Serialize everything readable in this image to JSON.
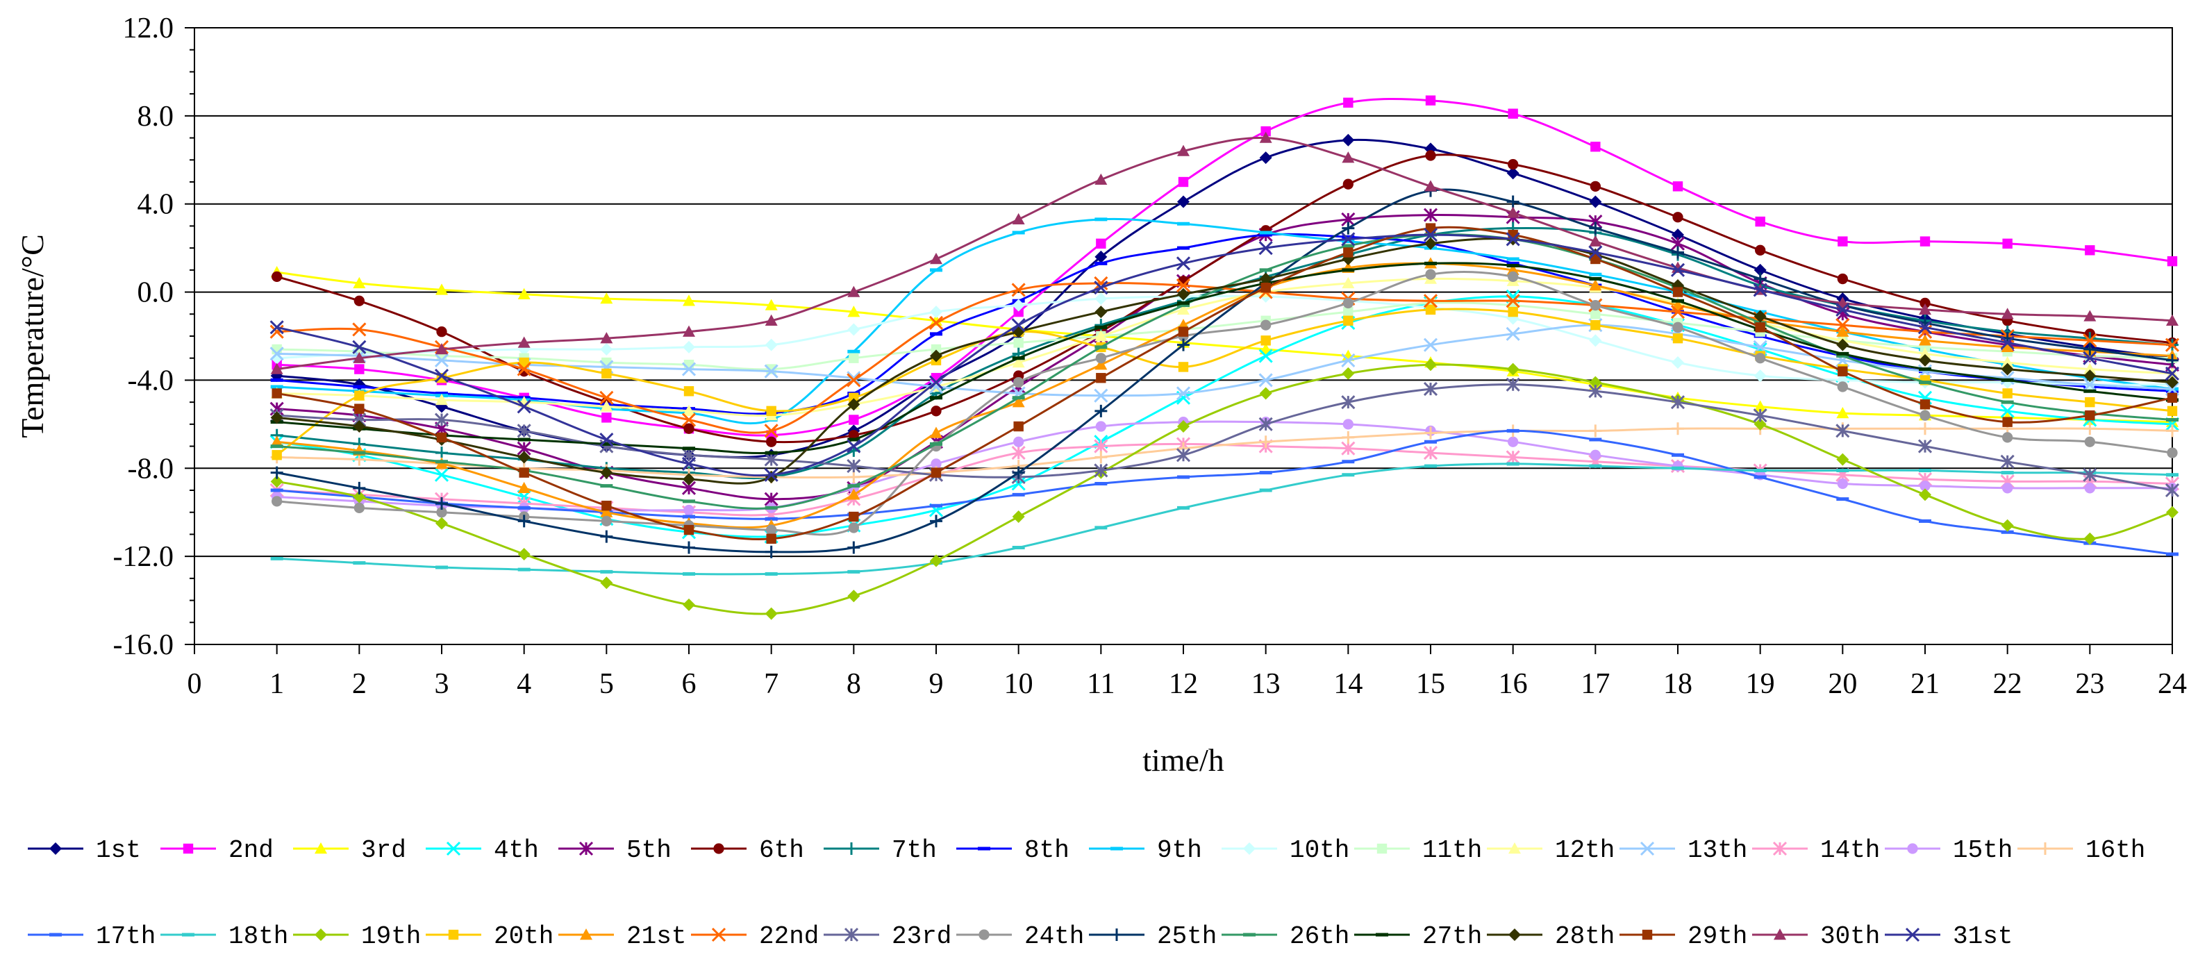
{
  "chart_data": {
    "type": "line",
    "title": "",
    "xlabel": "time/h",
    "ylabel": "Temperature/°C",
    "xlim": [
      0,
      24
    ],
    "ylim": [
      -16,
      12
    ],
    "x_ticks": [
      "0",
      "1",
      "2",
      "3",
      "4",
      "5",
      "6",
      "7",
      "8",
      "9",
      "10",
      "11",
      "12",
      "13",
      "14",
      "15",
      "16",
      "17",
      "18",
      "19",
      "20",
      "21",
      "22",
      "23",
      "24"
    ],
    "y_ticks": [
      "12.0",
      "8.0",
      "4.0",
      "0.0",
      "-4.0",
      "-8.0",
      "-12.0",
      "-16.0"
    ],
    "y_tick_values": [
      12,
      8,
      4,
      0,
      -4,
      -8,
      -12,
      -16
    ],
    "grid": "horizontal",
    "legend_position": "bottom",
    "x": [
      1,
      2,
      3,
      4,
      5,
      6,
      7,
      8,
      9,
      10,
      11,
      12,
      13,
      14,
      15,
      16,
      17,
      18,
      19,
      20,
      21,
      22,
      23,
      24
    ],
    "series": [
      {
        "name": "1st",
        "color": "#000080",
        "marker": "diamond",
        "values": [
          -3.8,
          -4.2,
          -5.2,
          -6.3,
          -7.0,
          -7.4,
          -7.4,
          -6.3,
          -4.0,
          -1.9,
          1.6,
          4.1,
          6.1,
          6.9,
          6.5,
          5.4,
          4.1,
          2.6,
          1.0,
          -0.3,
          -1.2,
          -1.9,
          -2.5,
          -3.0
        ]
      },
      {
        "name": "2nd",
        "color": "#FF00FF",
        "marker": "square",
        "values": [
          -3.3,
          -3.5,
          -4.0,
          -4.8,
          -5.7,
          -6.2,
          -6.5,
          -5.8,
          -3.9,
          -0.9,
          2.2,
          5.0,
          7.3,
          8.6,
          8.7,
          8.1,
          6.6,
          4.8,
          3.2,
          2.3,
          2.3,
          2.2,
          1.9,
          1.4
        ]
      },
      {
        "name": "3rd",
        "color": "#FFFF00",
        "marker": "triangle",
        "values": [
          0.9,
          0.4,
          0.1,
          -0.1,
          -0.3,
          -0.4,
          -0.6,
          -0.9,
          -1.3,
          -1.7,
          -2.0,
          -2.3,
          -2.6,
          -2.9,
          -3.2,
          -3.6,
          -4.2,
          -4.8,
          -5.2,
          -5.5,
          -5.6,
          -5.7,
          -5.8,
          -5.9
        ]
      },
      {
        "name": "4th",
        "color": "#00FFFF",
        "marker": "x",
        "values": [
          -6.8,
          -7.4,
          -8.3,
          -9.3,
          -10.3,
          -10.9,
          -11.1,
          -10.6,
          -9.9,
          -8.7,
          -6.8,
          -4.8,
          -2.9,
          -1.4,
          -0.5,
          -0.2,
          -0.6,
          -1.5,
          -2.6,
          -3.8,
          -4.8,
          -5.4,
          -5.8,
          -6.0
        ]
      },
      {
        "name": "5th",
        "color": "#800080",
        "marker": "star",
        "values": [
          -5.3,
          -5.6,
          -6.2,
          -7.1,
          -8.2,
          -8.9,
          -9.4,
          -8.9,
          -6.8,
          -4.3,
          -2.0,
          0.5,
          2.6,
          3.3,
          3.5,
          3.4,
          3.2,
          2.2,
          0.4,
          -1.0,
          -1.8,
          -2.4,
          -2.9,
          -3.3
        ]
      },
      {
        "name": "6th",
        "color": "#800000",
        "marker": "circle",
        "values": [
          0.7,
          -0.4,
          -1.8,
          -3.6,
          -5.0,
          -6.2,
          -6.8,
          -6.5,
          -5.4,
          -3.8,
          -1.8,
          0.5,
          2.8,
          4.9,
          6.2,
          5.8,
          4.8,
          3.4,
          1.9,
          0.6,
          -0.5,
          -1.3,
          -1.9,
          -2.3
        ]
      },
      {
        "name": "7th",
        "color": "#008080",
        "marker": "plus",
        "values": [
          -6.5,
          -6.9,
          -7.3,
          -7.6,
          -8.0,
          -8.2,
          -8.4,
          -7.2,
          -4.6,
          -2.8,
          -1.5,
          -0.4,
          0.7,
          1.7,
          2.6,
          2.9,
          2.7,
          1.7,
          0.3,
          -0.6,
          -1.3,
          -1.8,
          -2.1,
          -2.4
        ]
      },
      {
        "name": "8th",
        "color": "#0000FF",
        "marker": "dash",
        "values": [
          -4.0,
          -4.3,
          -4.6,
          -4.8,
          -5.1,
          -5.3,
          -5.5,
          -4.6,
          -1.9,
          -0.4,
          1.3,
          2.0,
          2.6,
          2.5,
          2.2,
          1.3,
          0.3,
          -0.9,
          -2.0,
          -2.9,
          -3.6,
          -4.0,
          -4.3,
          -4.5
        ]
      },
      {
        "name": "9th",
        "color": "#00CCFF",
        "marker": "dash",
        "values": [
          -4.3,
          -4.5,
          -4.7,
          -4.9,
          -5.3,
          -5.5,
          -5.8,
          -2.7,
          1.0,
          2.7,
          3.3,
          3.1,
          2.7,
          2.3,
          2.0,
          1.5,
          0.8,
          0.0,
          -0.9,
          -1.8,
          -2.6,
          -3.3,
          -3.9,
          -4.4
        ]
      },
      {
        "name": "10th",
        "color": "#CCFFFF",
        "marker": "diamond",
        "values": [
          -3.0,
          -2.8,
          -2.7,
          -2.6,
          -2.6,
          -2.5,
          -2.4,
          -1.7,
          -0.9,
          -0.6,
          -0.3,
          -0.2,
          -0.2,
          -0.4,
          -0.7,
          -1.2,
          -2.2,
          -3.2,
          -3.8,
          -4.0,
          -4.1,
          -4.1,
          -4.2,
          -4.2
        ]
      },
      {
        "name": "11th",
        "color": "#CCFFCC",
        "marker": "square",
        "values": [
          -2.6,
          -2.7,
          -2.9,
          -3.0,
          -3.2,
          -3.3,
          -3.5,
          -3.0,
          -2.6,
          -2.3,
          -2.0,
          -1.7,
          -1.3,
          -0.9,
          -0.5,
          -0.6,
          -1.0,
          -1.4,
          -1.8,
          -2.2,
          -2.5,
          -2.7,
          -2.9,
          -3.0
        ]
      },
      {
        "name": "12th",
        "color": "#FFFF99",
        "marker": "triangle",
        "values": [
          -4.6,
          -4.7,
          -4.9,
          -5.0,
          -5.2,
          -5.4,
          -5.6,
          -5.1,
          -4.3,
          -3.2,
          -2.0,
          -0.8,
          0.0,
          0.4,
          0.6,
          0.5,
          0.2,
          -0.5,
          -1.4,
          -2.2,
          -2.8,
          -3.2,
          -3.5,
          -3.7
        ]
      },
      {
        "name": "13th",
        "color": "#99CCFF",
        "marker": "x",
        "values": [
          -2.8,
          -2.9,
          -3.1,
          -3.3,
          -3.4,
          -3.5,
          -3.6,
          -3.9,
          -4.3,
          -4.6,
          -4.7,
          -4.6,
          -4.0,
          -3.1,
          -2.4,
          -1.9,
          -1.5,
          -1.9,
          -2.5,
          -3.1,
          -3.6,
          -3.9,
          -4.2,
          -4.4
        ]
      },
      {
        "name": "14th",
        "color": "#FF99CC",
        "marker": "star",
        "values": [
          -9.0,
          -9.2,
          -9.4,
          -9.6,
          -9.8,
          -10.0,
          -10.1,
          -9.4,
          -8.3,
          -7.3,
          -7.0,
          -6.9,
          -7.0,
          -7.1,
          -7.3,
          -7.5,
          -7.7,
          -7.9,
          -8.1,
          -8.3,
          -8.5,
          -8.6,
          -8.6,
          -8.7
        ]
      },
      {
        "name": "15th",
        "color": "#CC99FF",
        "marker": "circle",
        "values": [
          -9.3,
          -9.5,
          -9.7,
          -9.8,
          -9.9,
          -9.9,
          -9.8,
          -8.9,
          -7.8,
          -6.8,
          -6.1,
          -5.9,
          -5.9,
          -6.0,
          -6.3,
          -6.8,
          -7.4,
          -7.9,
          -8.3,
          -8.7,
          -8.8,
          -8.9,
          -8.9,
          -8.9
        ]
      },
      {
        "name": "16th",
        "color": "#FFCC99",
        "marker": "plus",
        "values": [
          -7.5,
          -7.6,
          -7.8,
          -8.0,
          -8.1,
          -8.3,
          -8.4,
          -8.4,
          -8.2,
          -7.9,
          -7.5,
          -7.1,
          -6.8,
          -6.6,
          -6.4,
          -6.3,
          -6.3,
          -6.2,
          -6.2,
          -6.2,
          -6.2,
          -6.2,
          -6.2,
          -6.3
        ]
      },
      {
        "name": "17th",
        "color": "#3366FF",
        "marker": "dash",
        "values": [
          -9.0,
          -9.3,
          -9.6,
          -9.8,
          -10.0,
          -10.2,
          -10.3,
          -10.1,
          -9.7,
          -9.2,
          -8.7,
          -8.4,
          -8.2,
          -7.7,
          -6.8,
          -6.3,
          -6.7,
          -7.4,
          -8.4,
          -9.4,
          -10.4,
          -10.9,
          -11.4,
          -11.9
        ]
      },
      {
        "name": "18th",
        "color": "#33CCCC",
        "marker": "dash",
        "values": [
          -12.1,
          -12.3,
          -12.5,
          -12.6,
          -12.7,
          -12.8,
          -12.8,
          -12.7,
          -12.3,
          -11.6,
          -10.7,
          -9.8,
          -9.0,
          -8.3,
          -7.9,
          -7.8,
          -7.9,
          -8.0,
          -8.1,
          -8.1,
          -8.1,
          -8.2,
          -8.2,
          -8.3
        ]
      },
      {
        "name": "19th",
        "color": "#99CC00",
        "marker": "diamond",
        "values": [
          -8.6,
          -9.3,
          -10.5,
          -11.9,
          -13.2,
          -14.2,
          -14.6,
          -13.8,
          -12.2,
          -10.2,
          -8.2,
          -6.1,
          -4.6,
          -3.7,
          -3.3,
          -3.5,
          -4.1,
          -4.9,
          -6.0,
          -7.6,
          -9.2,
          -10.6,
          -11.2,
          -10.0
        ]
      },
      {
        "name": "20th",
        "color": "#FFCC00",
        "marker": "square",
        "values": [
          -7.4,
          -4.7,
          -3.9,
          -3.2,
          -3.7,
          -4.5,
          -5.4,
          -4.8,
          -3.1,
          -1.8,
          -2.5,
          -3.4,
          -2.2,
          -1.3,
          -0.8,
          -0.9,
          -1.5,
          -2.1,
          -2.9,
          -3.5,
          -4.0,
          -4.6,
          -5.0,
          -5.4
        ]
      },
      {
        "name": "21st",
        "color": "#FF9900",
        "marker": "triangle",
        "values": [
          -6.8,
          -7.2,
          -7.8,
          -8.9,
          -10.0,
          -10.5,
          -10.6,
          -9.2,
          -6.4,
          -5.0,
          -3.3,
          -1.5,
          0.2,
          1.1,
          1.3,
          1.0,
          0.3,
          -0.6,
          -1.3,
          -1.8,
          -2.2,
          -2.5,
          -2.7,
          -2.9
        ]
      },
      {
        "name": "22nd",
        "color": "#FF6600",
        "marker": "x",
        "values": [
          -1.8,
          -1.7,
          -2.5,
          -3.5,
          -4.8,
          -5.8,
          -6.3,
          -4.0,
          -1.4,
          0.1,
          0.4,
          0.3,
          0.0,
          -0.3,
          -0.4,
          -0.4,
          -0.6,
          -0.9,
          -1.2,
          -1.5,
          -1.8,
          -2.0,
          -2.2,
          -2.4
        ]
      },
      {
        "name": "23rd",
        "color": "#666699",
        "marker": "star",
        "values": [
          -5.6,
          -5.8,
          -5.8,
          -6.3,
          -7.0,
          -7.4,
          -7.6,
          -7.9,
          -8.3,
          -8.4,
          -8.1,
          -7.4,
          -6.0,
          -5.0,
          -4.4,
          -4.2,
          -4.5,
          -5.0,
          -5.6,
          -6.3,
          -7.0,
          -7.7,
          -8.3,
          -9.0
        ]
      },
      {
        "name": "24th",
        "color": "#969696",
        "marker": "circle",
        "values": [
          -9.5,
          -9.8,
          -10.0,
          -10.2,
          -10.4,
          -10.6,
          -10.8,
          -10.7,
          -7.0,
          -4.1,
          -3.0,
          -2.0,
          -1.5,
          -0.5,
          0.8,
          0.7,
          -0.6,
          -1.6,
          -3.0,
          -4.3,
          -5.6,
          -6.6,
          -6.8,
          -7.3
        ]
      },
      {
        "name": "25th",
        "color": "#003366",
        "marker": "plus",
        "values": [
          -8.2,
          -8.9,
          -9.6,
          -10.4,
          -11.1,
          -11.6,
          -11.8,
          -11.6,
          -10.4,
          -8.2,
          -5.4,
          -2.4,
          0.4,
          2.9,
          4.6,
          4.1,
          2.9,
          1.8,
          0.6,
          -0.6,
          -1.4,
          -2.1,
          -2.6,
          -3.1
        ]
      },
      {
        "name": "26th",
        "color": "#339966",
        "marker": "dash",
        "values": [
          -7.0,
          -7.3,
          -7.7,
          -8.1,
          -8.8,
          -9.5,
          -9.8,
          -8.8,
          -6.9,
          -4.8,
          -2.5,
          -0.6,
          1.0,
          2.1,
          2.6,
          2.4,
          1.5,
          0.2,
          -1.4,
          -2.9,
          -4.1,
          -5.0,
          -5.5,
          -5.8
        ]
      },
      {
        "name": "27th",
        "color": "#003300",
        "marker": "dash",
        "values": [
          -5.9,
          -6.2,
          -6.5,
          -6.7,
          -6.9,
          -7.1,
          -7.3,
          -6.7,
          -4.8,
          -3.0,
          -1.6,
          -0.5,
          0.4,
          1.0,
          1.3,
          1.2,
          0.6,
          -0.4,
          -1.7,
          -2.8,
          -3.5,
          -4.0,
          -4.5,
          -4.9
        ]
      },
      {
        "name": "28th",
        "color": "#333300",
        "marker": "diamond",
        "values": [
          -5.7,
          -6.1,
          -6.7,
          -7.5,
          -8.2,
          -8.5,
          -8.4,
          -5.1,
          -2.9,
          -1.8,
          -0.9,
          -0.1,
          0.6,
          1.5,
          2.2,
          2.4,
          1.7,
          0.3,
          -1.1,
          -2.4,
          -3.1,
          -3.5,
          -3.8,
          -4.1
        ]
      },
      {
        "name": "29th",
        "color": "#993300",
        "marker": "square",
        "values": [
          -4.6,
          -5.3,
          -6.6,
          -8.2,
          -9.7,
          -10.8,
          -11.2,
          -10.2,
          -8.2,
          -6.1,
          -3.9,
          -1.8,
          0.2,
          1.8,
          2.9,
          2.6,
          1.5,
          0.0,
          -1.6,
          -3.6,
          -5.1,
          -5.9,
          -5.6,
          -4.8
        ]
      },
      {
        "name": "30th",
        "color": "#993366",
        "marker": "triangle",
        "values": [
          -3.5,
          -3.0,
          -2.6,
          -2.3,
          -2.1,
          -1.8,
          -1.3,
          0.0,
          1.5,
          3.3,
          5.1,
          6.4,
          7.0,
          6.1,
          4.8,
          3.6,
          2.3,
          1.1,
          0.1,
          -0.5,
          -0.8,
          -1.0,
          -1.1,
          -1.3
        ]
      },
      {
        "name": "31st",
        "color": "#333399",
        "marker": "x",
        "values": [
          -1.6,
          -2.5,
          -3.8,
          -5.2,
          -6.7,
          -7.8,
          -8.3,
          -7.0,
          -4.1,
          -1.5,
          0.2,
          1.3,
          2.0,
          2.4,
          2.6,
          2.4,
          1.8,
          1.0,
          0.1,
          -0.8,
          -1.6,
          -2.3,
          -3.0,
          -3.7
        ]
      }
    ]
  }
}
